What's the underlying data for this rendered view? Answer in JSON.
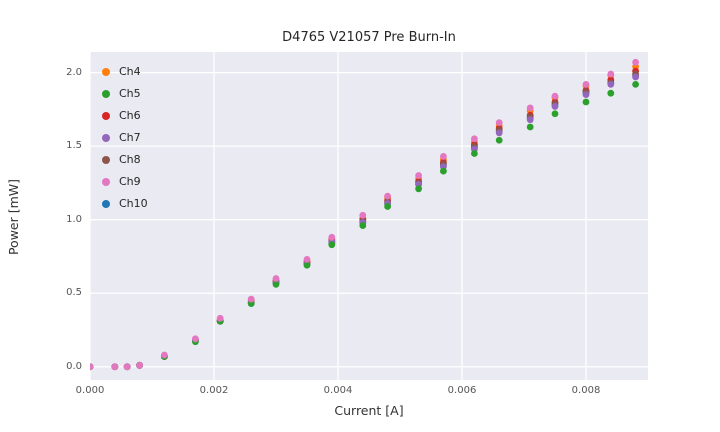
{
  "chart_data": {
    "type": "scatter",
    "title": "D4765 V21057 Pre Burn-In",
    "xlabel": "Current [A]",
    "ylabel": "Power [mW]",
    "xlim": [
      0.0,
      0.009
    ],
    "ylim": [
      -0.09,
      2.14
    ],
    "xticks": [
      0.0,
      0.002,
      0.004,
      0.006,
      0.008
    ],
    "xtick_labels": [
      "0.000",
      "0.002",
      "0.004",
      "0.006",
      "0.008"
    ],
    "yticks": [
      0.0,
      0.5,
      1.0,
      1.5,
      2.0
    ],
    "ytick_labels": [
      "0.0",
      "0.5",
      "1.0",
      "1.5",
      "2.0"
    ],
    "grid": true,
    "grid_color": "#ffffff",
    "plot_background": "#eaeaf2",
    "legend_position": "upper-left",
    "marker": "circle",
    "marker_radius": 3.4,
    "x": [
      0.0,
      0.0004,
      0.0006,
      0.0008,
      0.0012,
      0.0017,
      0.0021,
      0.0026,
      0.003,
      0.0035,
      0.0039,
      0.0044,
      0.0048,
      0.0053,
      0.0057,
      0.0062,
      0.0066,
      0.0071,
      0.0075,
      0.008,
      0.0084,
      0.0088
    ],
    "series": [
      {
        "name": "Ch4",
        "color": "#ff7f0e",
        "values": [
          0.0,
          0.0,
          0.0,
          0.01,
          0.07,
          0.18,
          0.32,
          0.45,
          0.59,
          0.72,
          0.87,
          1.01,
          1.15,
          1.28,
          1.41,
          1.53,
          1.64,
          1.74,
          1.83,
          1.91,
          1.98,
          2.04
        ]
      },
      {
        "name": "Ch5",
        "color": "#2ca02c",
        "values": [
          0.0,
          0.0,
          0.0,
          0.01,
          0.07,
          0.17,
          0.31,
          0.43,
          0.56,
          0.69,
          0.83,
          0.96,
          1.09,
          1.21,
          1.33,
          1.45,
          1.54,
          1.63,
          1.72,
          1.8,
          1.86,
          1.92
        ]
      },
      {
        "name": "Ch6",
        "color": "#d62728",
        "values": [
          0.0,
          0.0,
          0.0,
          0.01,
          0.07,
          0.18,
          0.31,
          0.44,
          0.58,
          0.71,
          0.86,
          1.0,
          1.13,
          1.26,
          1.39,
          1.51,
          1.62,
          1.71,
          1.8,
          1.88,
          1.95,
          2.01
        ]
      },
      {
        "name": "Ch7",
        "color": "#9467bd",
        "values": [
          0.0,
          0.0,
          0.0,
          0.01,
          0.07,
          0.18,
          0.31,
          0.43,
          0.57,
          0.7,
          0.85,
          0.98,
          1.11,
          1.24,
          1.36,
          1.48,
          1.59,
          1.68,
          1.77,
          1.85,
          1.92,
          1.97
        ]
      },
      {
        "name": "Ch8",
        "color": "#8c564b",
        "values": [
          0.0,
          0.0,
          0.0,
          0.01,
          0.07,
          0.18,
          0.31,
          0.44,
          0.58,
          0.7,
          0.85,
          0.99,
          1.12,
          1.25,
          1.38,
          1.5,
          1.61,
          1.7,
          1.79,
          1.87,
          1.93,
          1.99
        ]
      },
      {
        "name": "Ch9",
        "color": "#e377c2",
        "values": [
          0.0,
          0.0,
          0.0,
          0.01,
          0.08,
          0.19,
          0.33,
          0.46,
          0.6,
          0.73,
          0.88,
          1.03,
          1.16,
          1.3,
          1.43,
          1.55,
          1.66,
          1.76,
          1.84,
          1.92,
          1.99,
          2.07
        ]
      },
      {
        "name": "Ch10",
        "color": "#1f77b4",
        "values": [
          0.0,
          0.0,
          0.0,
          0.01,
          0.07,
          0.18,
          0.31,
          0.43,
          0.57,
          0.7,
          0.84,
          0.98,
          1.11,
          1.24,
          1.37,
          1.49,
          1.6,
          1.69,
          1.78,
          1.86,
          1.93,
          1.98
        ]
      }
    ],
    "draw_order": [
      "Ch10",
      "Ch4",
      "Ch6",
      "Ch8",
      "Ch7",
      "Ch5",
      "Ch9"
    ]
  }
}
